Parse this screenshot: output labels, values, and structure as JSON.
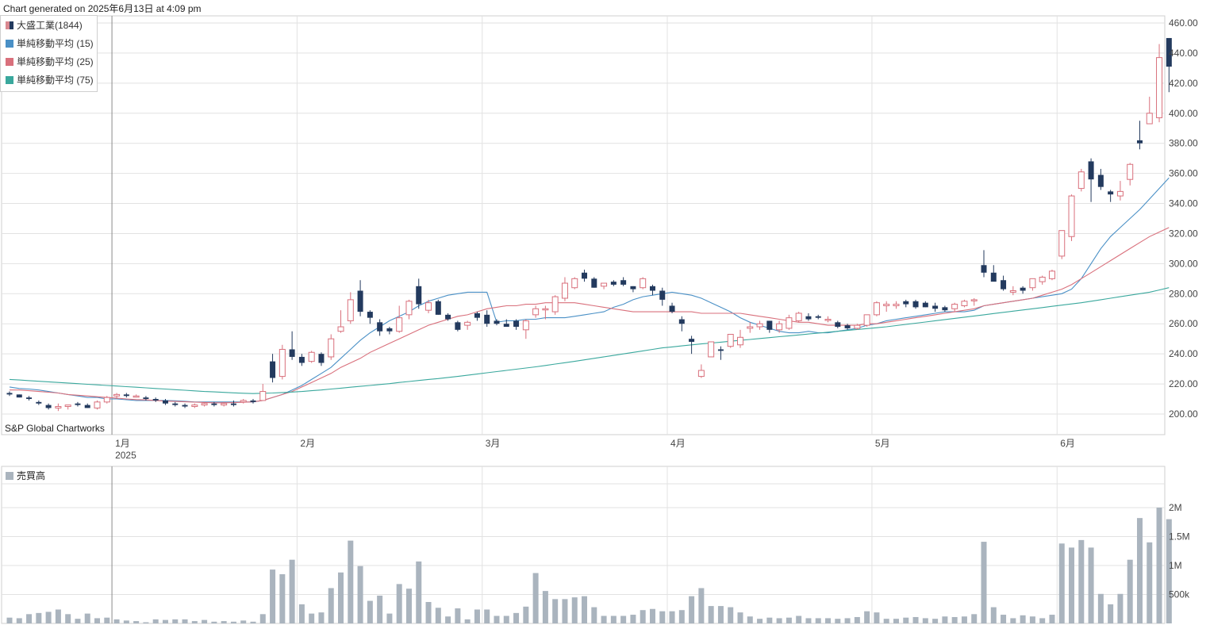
{
  "header": {
    "generated": "Chart generated on 2025年6月13日 at 4:09 pm"
  },
  "legend": {
    "items": [
      {
        "label": "大盛工業(1844)",
        "kind": "candle"
      },
      {
        "label": "単純移動平均 (15)",
        "color": "#4a90c6"
      },
      {
        "label": "単純移動平均 (25)",
        "color": "#d9707c"
      },
      {
        "label": "単純移動平均 (75)",
        "color": "#3aa89d"
      }
    ]
  },
  "credit": "S&P Global Chartworks",
  "volume_legend": {
    "label": "売買高"
  },
  "colors": {
    "up": "#d9707c",
    "down": "#233a5e",
    "volume": "#aab4be",
    "grid": "#e2e2e2"
  },
  "chart_data": {
    "type": "candlestick",
    "price_axis": {
      "ylim": [
        195,
        460
      ],
      "ticks": [
        "200.00",
        "220.00",
        "240.00",
        "260.00",
        "280.00",
        "300.00",
        "320.00",
        "340.00",
        "360.00",
        "380.00",
        "400.00",
        "420.00",
        "440.00",
        "460.00"
      ]
    },
    "volume_axis": {
      "ylim": [
        0,
        2400000
      ],
      "ticks": [
        {
          "v": 500000,
          "label": "500k"
        },
        {
          "v": 1000000,
          "label": "1M"
        },
        {
          "v": 1500000,
          "label": "1.5M"
        },
        {
          "v": 2000000,
          "label": "2M"
        }
      ]
    },
    "month_labels": [
      {
        "label": "1月",
        "sub": "2025",
        "index": 11
      },
      {
        "label": "2月",
        "index": 30
      },
      {
        "label": "3月",
        "index": 49
      },
      {
        "label": "4月",
        "index": 68
      },
      {
        "label": "5月",
        "index": 89
      },
      {
        "label": "6月",
        "index": 108
      }
    ],
    "ohlc": [
      [
        214,
        215,
        212,
        213
      ],
      [
        213,
        213,
        211,
        211
      ],
      [
        211,
        212,
        209,
        210
      ],
      [
        208,
        209,
        206,
        207
      ],
      [
        206,
        207,
        203,
        204
      ],
      [
        204,
        207,
        202,
        205
      ],
      [
        205,
        206,
        203,
        206
      ],
      [
        207,
        208,
        205,
        206
      ],
      [
        206,
        207,
        204,
        204
      ],
      [
        204,
        209,
        203,
        208
      ],
      [
        208,
        212,
        207,
        211
      ],
      [
        212,
        214,
        210,
        213
      ],
      [
        213,
        214,
        211,
        212
      ],
      [
        212,
        213,
        211,
        212
      ],
      [
        211,
        212,
        209,
        210
      ],
      [
        210,
        211,
        208,
        209
      ],
      [
        209,
        210,
        206,
        207
      ],
      [
        207,
        208,
        205,
        206
      ],
      [
        206,
        207,
        204,
        205
      ],
      [
        205,
        207,
        204,
        206
      ],
      [
        206,
        208,
        205,
        207
      ],
      [
        207,
        208,
        205,
        206
      ],
      [
        206,
        208,
        205,
        207
      ],
      [
        207,
        209,
        205,
        206
      ],
      [
        208,
        210,
        207,
        209
      ],
      [
        209,
        210,
        207,
        208
      ],
      [
        209,
        220,
        209,
        215
      ],
      [
        235,
        240,
        221,
        224
      ],
      [
        225,
        246,
        223,
        243
      ],
      [
        243,
        255,
        236,
        238
      ],
      [
        238,
        240,
        232,
        234
      ],
      [
        235,
        242,
        234,
        241
      ],
      [
        240,
        241,
        232,
        234
      ],
      [
        238,
        253,
        236,
        250
      ],
      [
        255,
        269,
        254,
        258
      ],
      [
        262,
        281,
        260,
        276
      ],
      [
        282,
        289,
        265,
        268
      ],
      [
        268,
        269,
        260,
        264
      ],
      [
        261,
        263,
        252,
        255
      ],
      [
        257,
        258,
        253,
        255
      ],
      [
        255,
        272,
        254,
        264
      ],
      [
        266,
        276,
        263,
        275
      ],
      [
        285,
        290,
        270,
        273
      ],
      [
        269,
        276,
        267,
        274
      ],
      [
        275,
        276,
        266,
        266
      ],
      [
        266,
        267,
        262,
        263
      ],
      [
        261,
        262,
        255,
        256
      ],
      [
        259,
        262,
        256,
        261
      ],
      [
        267,
        268,
        262,
        264
      ],
      [
        266,
        269,
        258,
        260
      ],
      [
        262,
        263,
        259,
        260
      ],
      [
        260,
        263,
        258,
        258
      ],
      [
        262,
        263,
        256,
        258
      ],
      [
        256,
        263,
        250,
        262
      ],
      [
        266,
        272,
        264,
        270
      ],
      [
        270,
        272,
        263,
        270
      ],
      [
        268,
        279,
        266,
        278
      ],
      [
        277,
        291,
        275,
        287
      ],
      [
        284,
        291,
        283,
        290
      ],
      [
        294,
        296,
        288,
        290
      ],
      [
        290,
        291,
        284,
        284
      ],
      [
        285,
        287,
        283,
        287
      ],
      [
        288,
        289,
        285,
        286
      ],
      [
        289,
        291,
        285,
        286
      ],
      [
        285,
        285,
        281,
        283
      ],
      [
        284,
        291,
        283,
        290
      ],
      [
        285,
        286,
        279,
        282
      ],
      [
        282,
        284,
        272,
        276
      ],
      [
        272,
        274,
        267,
        268
      ],
      [
        263,
        265,
        255,
        260
      ],
      [
        250,
        252,
        240,
        248
      ],
      [
        225,
        233,
        224,
        229
      ],
      [
        238,
        248,
        238,
        248
      ],
      [
        243,
        245,
        236,
        242
      ],
      [
        245,
        252,
        244,
        253
      ],
      [
        246,
        256,
        244,
        251
      ],
      [
        257,
        261,
        254,
        258
      ],
      [
        258,
        262,
        256,
        260
      ],
      [
        262,
        262,
        254,
        256
      ],
      [
        256,
        262,
        254,
        260
      ],
      [
        257,
        266,
        256,
        264
      ],
      [
        262,
        268,
        261,
        267
      ],
      [
        265,
        267,
        262,
        263
      ],
      [
        265,
        266,
        263,
        264
      ],
      [
        263,
        265,
        261,
        263
      ],
      [
        261,
        262,
        257,
        258
      ],
      [
        259,
        260,
        256,
        257
      ],
      [
        257,
        260,
        256,
        259
      ],
      [
        259,
        266,
        258,
        266
      ],
      [
        266,
        275,
        265,
        274
      ],
      [
        272,
        275,
        268,
        273
      ],
      [
        272,
        275,
        270,
        273
      ],
      [
        275,
        276,
        271,
        273
      ],
      [
        275,
        276,
        270,
        271
      ],
      [
        274,
        275,
        271,
        271
      ],
      [
        272,
        274,
        268,
        270
      ],
      [
        271,
        272,
        268,
        269
      ],
      [
        270,
        274,
        268,
        273
      ],
      [
        272,
        276,
        271,
        275
      ],
      [
        276,
        277,
        272,
        276
      ],
      [
        299,
        309,
        291,
        294
      ],
      [
        294,
        299,
        290,
        288
      ],
      [
        289,
        292,
        282,
        283
      ],
      [
        281,
        285,
        279,
        282
      ],
      [
        284,
        285,
        280,
        282
      ],
      [
        284,
        290,
        282,
        290
      ],
      [
        288,
        292,
        286,
        291
      ],
      [
        290,
        296,
        289,
        295
      ],
      [
        305,
        322,
        303,
        322
      ],
      [
        318,
        346,
        315,
        345
      ],
      [
        350,
        363,
        348,
        361
      ],
      [
        368,
        370,
        341,
        356
      ],
      [
        359,
        363,
        349,
        351
      ],
      [
        348,
        349,
        341,
        346
      ],
      [
        345,
        355,
        342,
        348
      ],
      [
        356,
        367,
        352,
        366
      ],
      [
        382,
        395,
        376,
        380
      ],
      [
        393,
        411,
        393,
        400
      ],
      [
        397,
        446,
        394,
        437
      ],
      [
        450,
        450,
        414,
        431
      ]
    ],
    "volume": [
      100000,
      90000,
      160000,
      180000,
      200000,
      240000,
      160000,
      80000,
      170000,
      90000,
      100000,
      70000,
      50000,
      40000,
      20000,
      70000,
      60000,
      70000,
      70000,
      40000,
      60000,
      30000,
      40000,
      30000,
      50000,
      30000,
      160000,
      930000,
      850000,
      1100000,
      330000,
      170000,
      190000,
      610000,
      880000,
      1430000,
      990000,
      390000,
      480000,
      170000,
      680000,
      600000,
      1070000,
      370000,
      270000,
      120000,
      260000,
      70000,
      240000,
      240000,
      130000,
      130000,
      180000,
      290000,
      870000,
      560000,
      420000,
      420000,
      450000,
      470000,
      280000,
      130000,
      130000,
      130000,
      150000,
      230000,
      250000,
      210000,
      210000,
      230000,
      470000,
      610000,
      300000,
      300000,
      280000,
      190000,
      120000,
      80000,
      100000,
      90000,
      100000,
      130000,
      90000,
      90000,
      90000,
      80000,
      90000,
      110000,
      210000,
      190000,
      80000,
      80000,
      100000,
      110000,
      90000,
      80000,
      120000,
      110000,
      120000,
      160000,
      1410000,
      280000,
      150000,
      90000,
      140000,
      120000,
      90000,
      150000,
      1380000,
      1310000,
      1440000,
      1310000,
      510000,
      330000,
      510000,
      1100000,
      1820000,
      1400000,
      2000000,
      1800000
    ],
    "sma15": [
      218,
      217,
      216.6,
      216,
      215,
      214,
      213,
      212,
      211,
      211,
      210,
      210,
      209.5,
      209,
      209,
      209,
      209,
      208.8,
      208.5,
      208,
      208,
      208,
      208,
      208,
      208,
      208,
      209,
      211,
      213,
      216,
      219,
      223,
      227,
      231,
      237,
      243,
      249,
      254,
      258,
      262,
      265,
      268,
      272,
      275,
      277,
      279,
      280,
      281,
      281,
      281,
      261,
      262,
      262,
      263,
      263,
      264,
      264,
      264,
      265,
      266,
      267,
      268,
      271,
      273,
      276,
      278,
      279,
      280,
      281,
      280,
      279,
      277,
      274,
      271,
      268,
      264,
      261,
      259,
      257,
      255,
      254,
      254,
      255,
      254,
      254,
      255,
      256,
      257,
      259,
      260,
      262,
      263,
      264,
      265,
      266,
      267,
      268,
      268,
      268,
      269,
      272,
      273,
      274,
      275,
      276,
      277,
      278,
      279,
      280,
      283,
      290,
      300,
      310,
      318,
      324,
      330,
      336,
      343,
      350,
      357
    ],
    "sma25": [
      216,
      216,
      215.5,
      215,
      214.5,
      214,
      213,
      212.5,
      212,
      211.5,
      211,
      210.6,
      210,
      209.6,
      209.4,
      209,
      208.6,
      208.4,
      208.1,
      207.9,
      207.7,
      207.5,
      207.5,
      207.6,
      207.8,
      208.1,
      209,
      211,
      213,
      215,
      218,
      221,
      224,
      227,
      231,
      234,
      237,
      241,
      244,
      247,
      250,
      253,
      256,
      259,
      261,
      263,
      265,
      266,
      268,
      270,
      271,
      272,
      272,
      273,
      273,
      274,
      274,
      274,
      274,
      273,
      272,
      271,
      270,
      269,
      268,
      268,
      268,
      268,
      268,
      268,
      268,
      267,
      267,
      267,
      267,
      267,
      266,
      265,
      264,
      263,
      262,
      261,
      261,
      260,
      259,
      259,
      259,
      259,
      260,
      260,
      261,
      262,
      263,
      264,
      265,
      266,
      267,
      268,
      269,
      270,
      272,
      273,
      274,
      275,
      276,
      277,
      279,
      281,
      283,
      286,
      290,
      294,
      298,
      302,
      306,
      310,
      314,
      318,
      321,
      324
    ],
    "sma75": [
      223,
      222.6,
      222.2,
      221.8,
      221.4,
      221,
      220.6,
      220.2,
      219.8,
      219.4,
      219,
      218.6,
      218.2,
      217.8,
      217.4,
      217,
      216.6,
      216.2,
      215.8,
      215.4,
      215,
      214.7,
      214.4,
      214.1,
      213.8,
      213.6,
      213.8,
      214,
      214.3,
      214.6,
      215,
      215.5,
      216,
      216.6,
      217.2,
      217.8,
      218.4,
      219,
      219.6,
      220.2,
      221,
      221.6,
      222.3,
      223,
      223.6,
      224.3,
      225,
      225.8,
      226.6,
      227.4,
      228.2,
      229,
      229.8,
      230.6,
      231.4,
      232.3,
      233.2,
      234.1,
      235,
      236,
      237,
      238,
      239,
      240,
      241,
      242,
      243,
      244,
      244.6,
      245.3,
      246,
      246.6,
      247.2,
      247.8,
      248.4,
      249,
      249.6,
      250.2,
      250.8,
      251.4,
      252,
      252.6,
      253.2,
      253.8,
      254.4,
      255,
      255.6,
      256.2,
      256.8,
      257.4,
      258,
      258.8,
      259.6,
      260.4,
      261.2,
      262,
      262.8,
      263.6,
      264.4,
      265.2,
      266,
      266.8,
      267.6,
      268.4,
      269.2,
      270,
      270.8,
      271.6,
      272.4,
      273.2,
      274,
      275,
      276,
      277,
      278,
      279,
      280,
      281,
      282.5,
      284
    ]
  }
}
